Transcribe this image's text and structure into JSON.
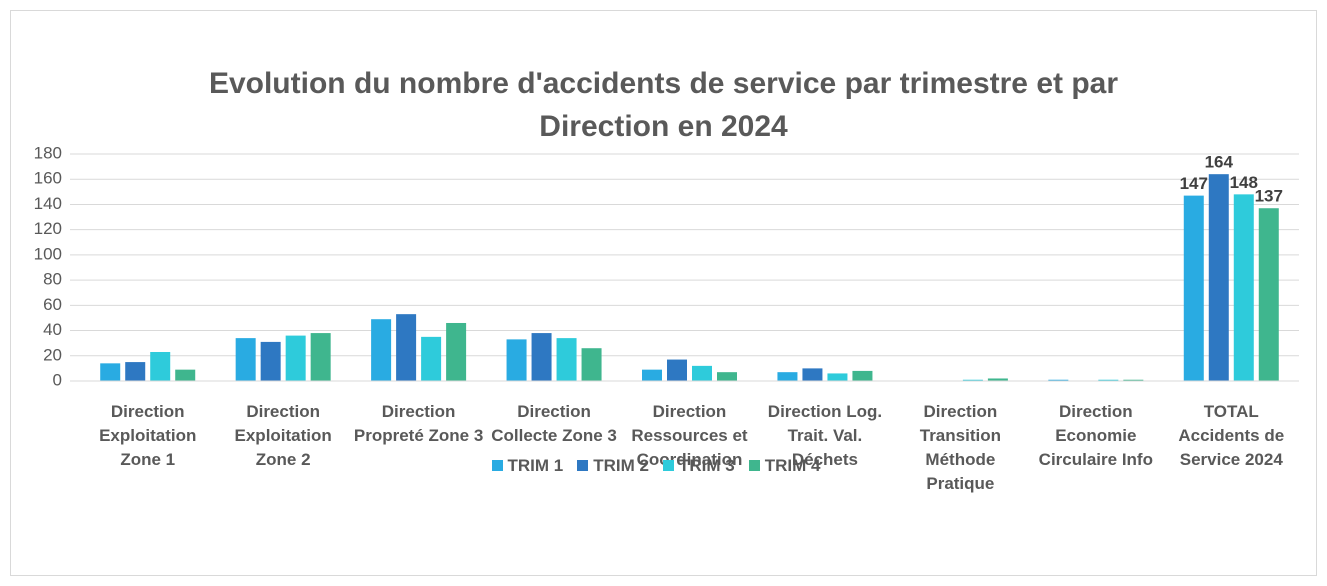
{
  "chart_data": {
    "type": "bar",
    "title": "Evolution du nombre d'accidents de service par trimestre et par Direction en 2024",
    "categories": [
      "Direction Exploitation Zone 1",
      "Direction Exploitation Zone 2",
      "Direction Propreté Zone 3",
      "Direction Collecte Zone 3",
      "Direction Ressources et Coordination",
      "Direction Log. Trait. Val. Déchets",
      "Direction Transition Méthode Pratique",
      "Direction Economie Circulaire Info",
      "TOTAL Accidents de Service 2024"
    ],
    "series": [
      {
        "name": "TRIM 1",
        "color": "#29abe2",
        "values": [
          14,
          34,
          49,
          33,
          9,
          7,
          0,
          1,
          147
        ]
      },
      {
        "name": "TRIM 2",
        "color": "#2e78c2",
        "values": [
          15,
          31,
          53,
          38,
          17,
          10,
          0,
          0,
          164
        ]
      },
      {
        "name": "TRIM 3",
        "color": "#2ecbdb",
        "values": [
          23,
          36,
          35,
          34,
          12,
          6,
          1,
          1,
          148
        ]
      },
      {
        "name": "TRIM 4",
        "color": "#3fb68e",
        "values": [
          9,
          38,
          46,
          26,
          7,
          8,
          2,
          1,
          137
        ]
      }
    ],
    "ylim": [
      0,
      180
    ],
    "yticks": [
      0,
      20,
      40,
      60,
      80,
      100,
      120,
      140,
      160,
      180
    ],
    "grid": true,
    "legend": "bottom"
  }
}
